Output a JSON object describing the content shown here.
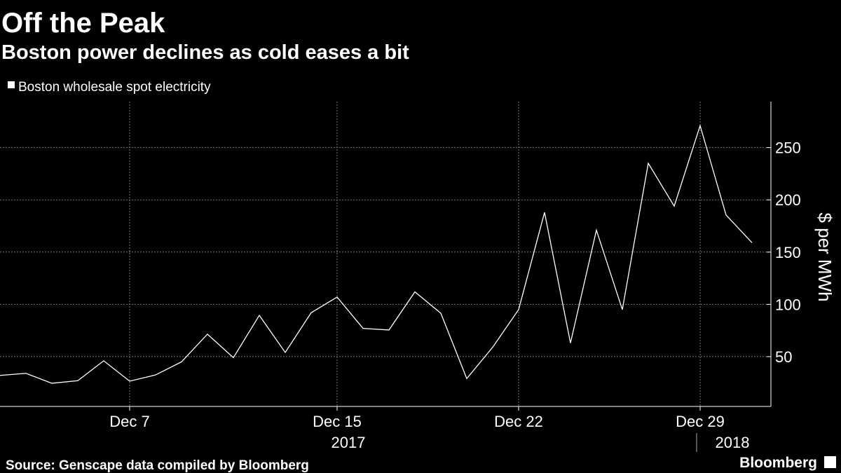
{
  "chart_data": {
    "type": "line",
    "title": "Off the Peak",
    "subtitle": "Boston power declines as cold eases a bit",
    "y_axis_label": "$ per MWh",
    "source": "Source: Genscape data compiled by Bloomberg",
    "brand": "Bloomberg",
    "year_labels": [
      "2017",
      "2018"
    ],
    "categories": [
      null,
      null,
      null,
      null,
      null,
      "Dec 7",
      null,
      null,
      null,
      null,
      null,
      null,
      null,
      "Dec 15",
      null,
      null,
      null,
      null,
      null,
      null,
      "Dec 22",
      null,
      null,
      null,
      null,
      null,
      null,
      "Dec 29",
      null,
      null
    ],
    "series": [
      {
        "name": "Boston wholesale spot electricity",
        "color": "#ffffff",
        "values": [
          32,
          34,
          24.5,
          27,
          46,
          26.5,
          32.5,
          45,
          71.5,
          49,
          89.5,
          54,
          92,
          107,
          77,
          75.5,
          112,
          91.5,
          29,
          59,
          95,
          188,
          63,
          171,
          95,
          235,
          194,
          271,
          185.5,
          159
        ]
      }
    ],
    "ylim": [
      0,
      294
    ],
    "yticks": [
      50,
      100,
      150,
      200,
      250
    ],
    "y_axis_side": "right",
    "grid": true
  }
}
